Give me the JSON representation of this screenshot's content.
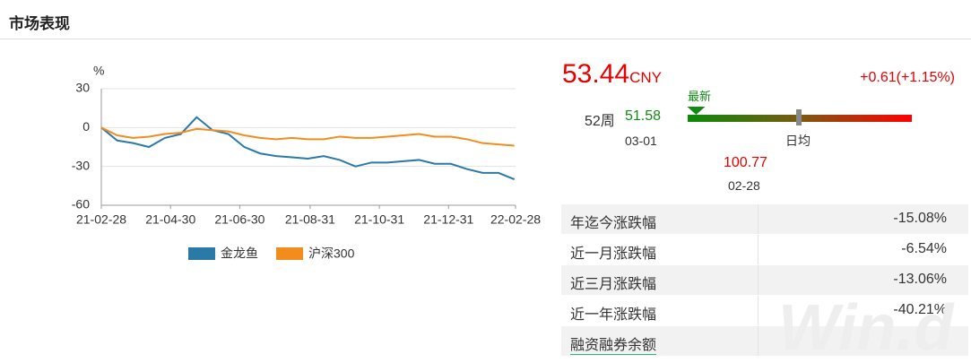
{
  "header": {
    "title": "市场表现"
  },
  "chart_data": {
    "type": "line",
    "y_unit": "%",
    "x": [
      "21-02-28",
      "21-03-14",
      "21-03-28",
      "21-04-11",
      "21-04-25",
      "21-05-09",
      "21-05-23",
      "21-06-06",
      "21-06-20",
      "21-07-04",
      "21-07-18",
      "21-08-01",
      "21-08-15",
      "21-08-29",
      "21-09-12",
      "21-09-26",
      "21-10-10",
      "21-10-24",
      "21-11-07",
      "21-11-21",
      "21-12-05",
      "21-12-19",
      "22-01-02",
      "22-01-16",
      "22-01-30",
      "22-02-13",
      "22-02-27"
    ],
    "series": [
      {
        "name": "金龙鱼",
        "color": "#2a7aa8",
        "values": [
          0,
          -10,
          -12,
          -15,
          -8,
          -5,
          8,
          -2,
          -5,
          -15,
          -20,
          -22,
          -23,
          -24,
          -22,
          -25,
          -30,
          -27,
          -27,
          -26,
          -25,
          -28,
          -28,
          -32,
          -35,
          -35,
          -40
        ]
      },
      {
        "name": "沪深300",
        "color": "#f28c1c",
        "values": [
          0,
          -6,
          -8,
          -7,
          -5,
          -4,
          -1,
          -2,
          -3,
          -6,
          -8,
          -9,
          -8,
          -9,
          -9,
          -7,
          -8,
          -8,
          -7,
          -6,
          -5,
          -7,
          -7,
          -9,
          -12,
          -13,
          -14
        ]
      }
    ],
    "xlim": [
      "21-02-28",
      "22-02-28"
    ],
    "xticks": [
      "21-02-28",
      "21-04-30",
      "21-06-30",
      "21-08-31",
      "21-10-31",
      "21-12-31",
      "22-02-28"
    ],
    "ylim": [
      -60,
      30
    ],
    "yticks": [
      -60,
      -30,
      0,
      30
    ],
    "grid": true
  },
  "quote": {
    "price": "53.44",
    "currency": "CNY",
    "change": "+0.61(+1.15%)",
    "latest_label": "最新",
    "week52_label": "52周",
    "low": 51.58,
    "low_date": "03-01",
    "avg_label": "日均",
    "high": 100.77,
    "high_date": "02-28"
  },
  "table": {
    "rows": [
      [
        "年迄今涨跌幅",
        "-15.08%"
      ],
      [
        "近一月涨跌幅",
        "-6.54%"
      ],
      [
        "近三月涨跌幅",
        "-13.06%"
      ],
      [
        "近一年涨跌幅",
        "-40.21%"
      ],
      [
        "融资融券余额",
        "--"
      ]
    ]
  },
  "watermark": "Win.d"
}
